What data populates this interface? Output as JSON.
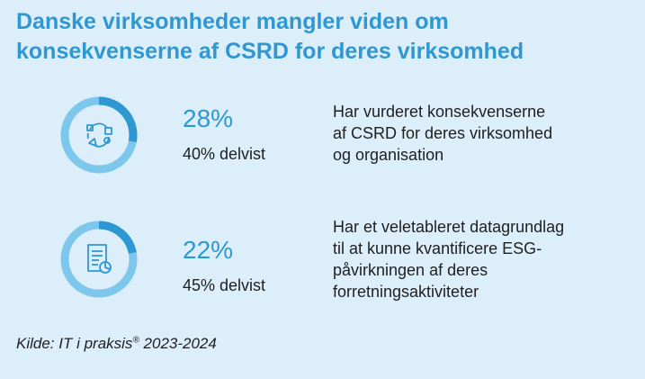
{
  "title": "Danske virksomheder mangler viden om konsekvenserne af CSRD for deres virksomhed",
  "colors": {
    "accent": "#2f97d1",
    "ring_track": "#7dc7ec",
    "background": "#dbeefa",
    "text": "#1f1f1f"
  },
  "chart_data": {
    "type": "donut",
    "items": [
      {
        "value": 28,
        "value_label": "28%",
        "partial_label": "40% delvist",
        "description": "Har vurderet konsekvenserne\naf CSRD for deres virksomhed\nog organisation",
        "icon": "process-cycle-icon"
      },
      {
        "value": 22,
        "value_label": "22%",
        "partial_label": "45% delvist",
        "description": "Har et veletableret datagrundlag\ntil at kunne kvantificere ESG-\npåvirkningen af deres\nforretningsaktiviteter",
        "icon": "document-chart-icon"
      }
    ]
  },
  "source": {
    "prefix": "Kilde: IT i praksis",
    "registered_mark": "®",
    "years": " 2023-2024"
  }
}
